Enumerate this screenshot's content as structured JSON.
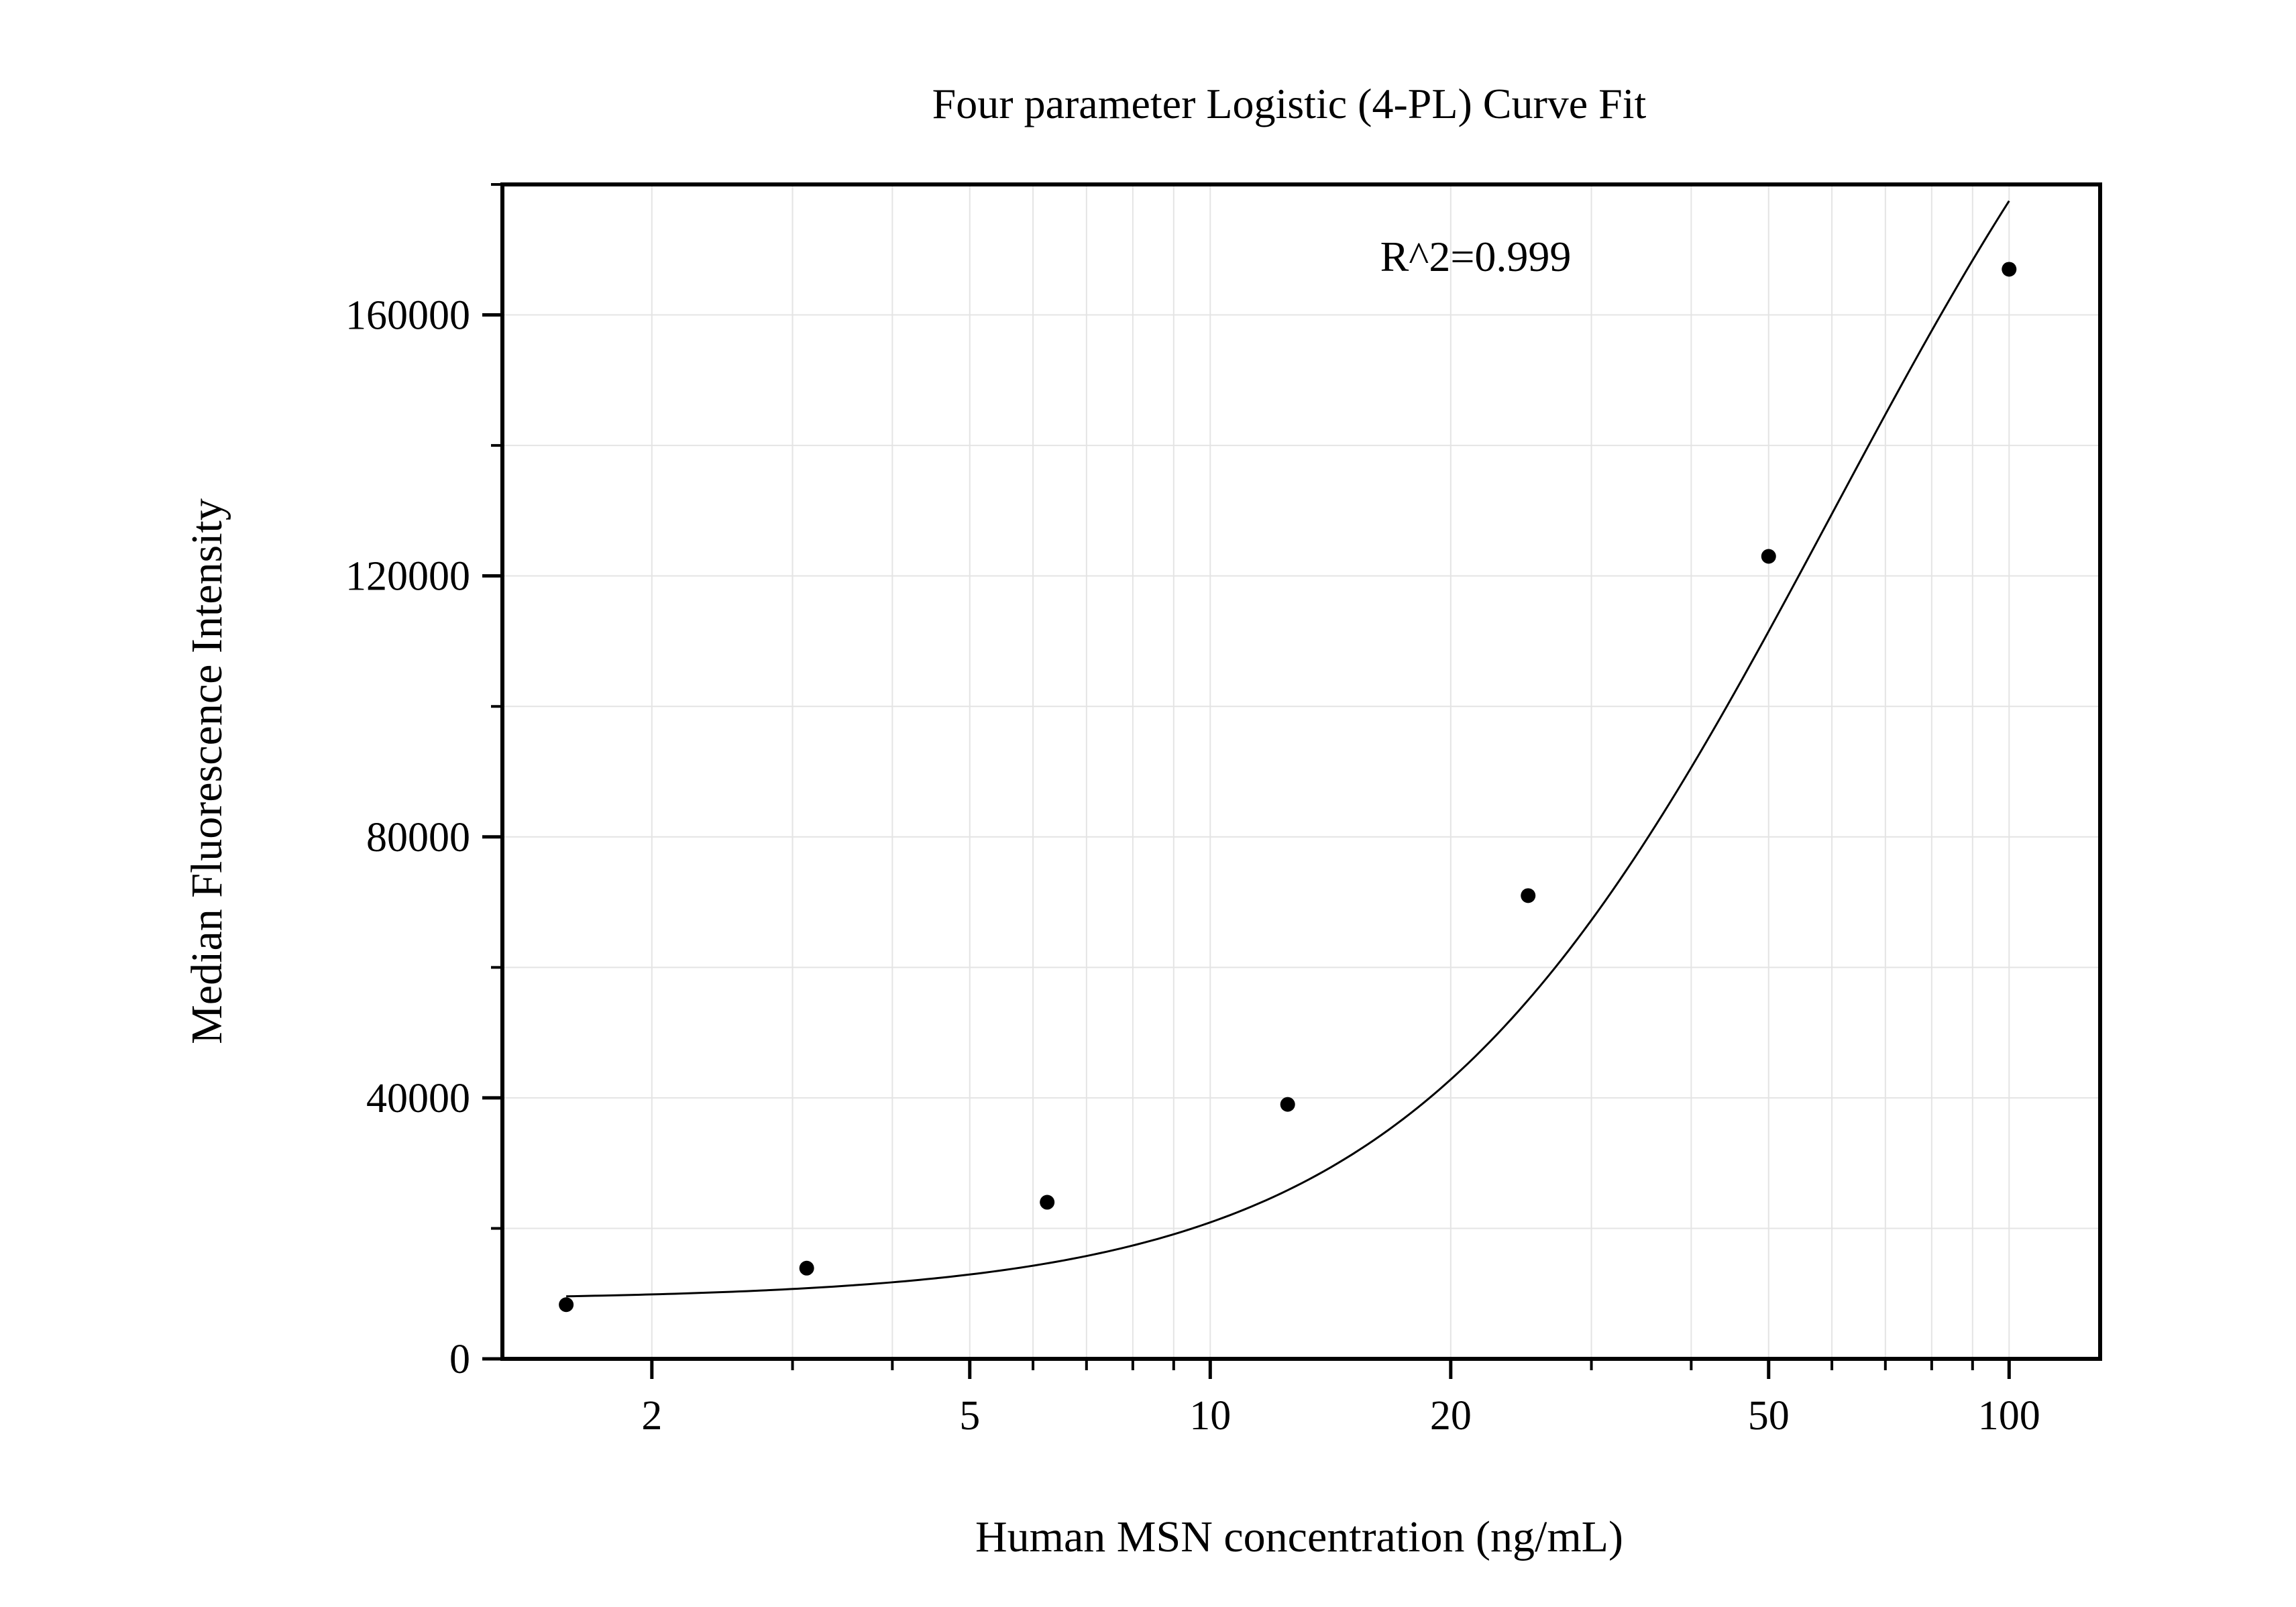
{
  "chart_data": {
    "type": "scatter",
    "title": "Four parameter Logistic (4-PL) Curve Fit",
    "xlabel": "Human MSN concentration (ng/mL)",
    "ylabel": "Median Fluorescence Intensity",
    "annotation": "R^2=0.999",
    "x_scale": "log",
    "xlim": [
      1.3,
      130
    ],
    "ylim": [
      0,
      180000
    ],
    "x_ticks": [
      2,
      5,
      10,
      20,
      50,
      100
    ],
    "x_tick_labels": [
      "2",
      "5",
      "10",
      "20",
      "50",
      "100"
    ],
    "y_ticks": [
      0,
      40000,
      80000,
      120000,
      160000
    ],
    "y_tick_labels": [
      "0",
      "40000",
      "80000",
      "120000",
      "160000"
    ],
    "y_minor_ticks": [
      20000,
      60000,
      100000,
      140000,
      180000
    ],
    "grid": true,
    "legend": "none",
    "series": [
      {
        "type": "scatter",
        "x": [
          1.5625,
          3.125,
          6.25,
          12.5,
          25,
          50,
          100
        ],
        "y": [
          8300,
          13900,
          24000,
          39000,
          71000,
          123000,
          167000
        ]
      },
      {
        "type": "line",
        "fit": {
          "A": 9000,
          "D": 250000,
          "C": 60,
          "B": 1.65
        }
      }
    ],
    "colors": {
      "marker": "#000000",
      "curve": "#000000",
      "grid": "#e4e4e4",
      "axis": "#000000"
    }
  }
}
